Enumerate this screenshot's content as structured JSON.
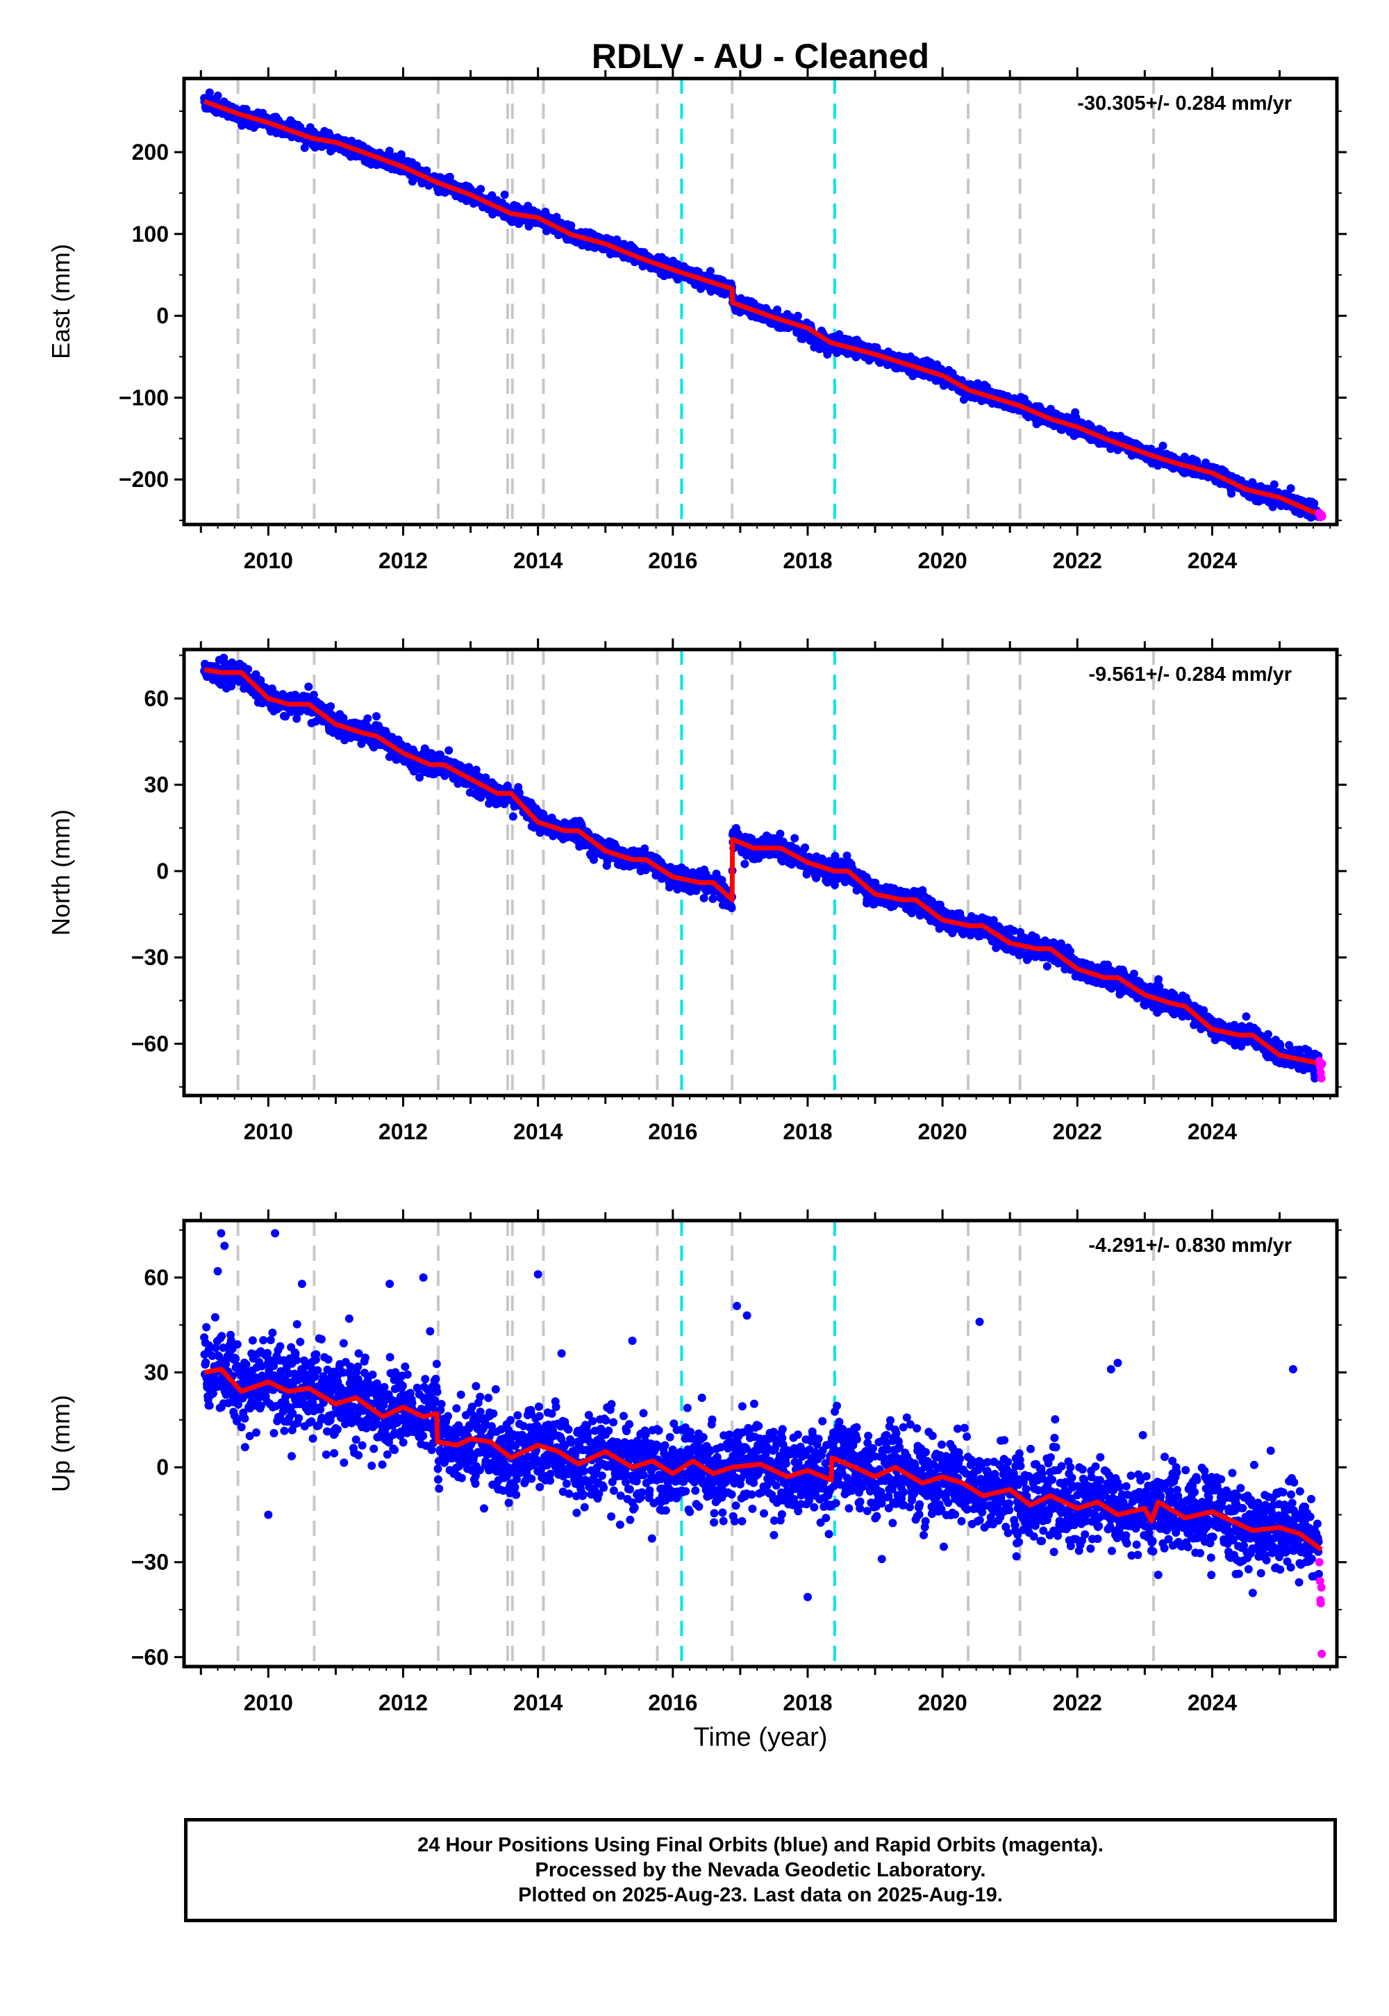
{
  "title": "RDLV  - AU - Cleaned",
  "xlabel": "Time (year)",
  "footer": {
    "line1": "24 Hour Positions Using Final Orbits (blue) and Rapid Orbits (magenta).",
    "line2": "Processed by the Nevada Geodetic Laboratory.",
    "line3": "Plotted on 2025-Aug-23. Last data on 2025-Aug-19."
  },
  "colors": {
    "final_orbits": "#0000ff",
    "rapid_orbits": "#ff00ff",
    "model": "#ff0000",
    "equipment_change_lines": "#c8c8c8",
    "earthquake_lines": "#00e5ee"
  },
  "chart_data": [
    {
      "type": "scatter",
      "component": "East",
      "ylabel": "East (mm)",
      "rate_label": "-30.305+/- 0.284 mm/yr",
      "xlim": [
        2008.75,
        2025.85
      ],
      "ylim": [
        -255,
        290
      ],
      "yticks": [
        -200,
        -100,
        0,
        100,
        200
      ],
      "xticks": [
        2010,
        2012,
        2014,
        2016,
        2018,
        2020,
        2022,
        2024
      ],
      "grid": false,
      "model_knots": [
        [
          2009.05,
          262
        ],
        [
          2009.55,
          247
        ],
        [
          2010.0,
          236
        ],
        [
          2010.65,
          217
        ],
        [
          2011.0,
          212
        ],
        [
          2011.4,
          200
        ],
        [
          2012.0,
          182
        ],
        [
          2012.5,
          163
        ],
        [
          2013.0,
          148
        ],
        [
          2013.6,
          125
        ],
        [
          2014.0,
          120
        ],
        [
          2014.5,
          99
        ],
        [
          2015.0,
          88
        ],
        [
          2015.5,
          71
        ],
        [
          2016.12,
          53
        ],
        [
          2016.88,
          33
        ],
        [
          2016.885,
          16
        ],
        [
          2017.5,
          -2
        ],
        [
          2018.0,
          -15
        ],
        [
          2018.35,
          -33
        ],
        [
          2019.0,
          -47
        ],
        [
          2019.5,
          -60
        ],
        [
          2020.0,
          -73
        ],
        [
          2020.4,
          -91
        ],
        [
          2021.15,
          -110
        ],
        [
          2021.6,
          -126
        ],
        [
          2022.0,
          -136
        ],
        [
          2022.5,
          -153
        ],
        [
          2023.15,
          -172
        ],
        [
          2023.5,
          -181
        ],
        [
          2024.0,
          -192
        ],
        [
          2024.5,
          -212
        ],
        [
          2025.0,
          -222
        ],
        [
          2025.62,
          -244
        ]
      ],
      "scatter_sigma": 4.5,
      "rapid_points": [
        [
          2025.59,
          -241
        ],
        [
          2025.6,
          -244
        ],
        [
          2025.61,
          -246
        ],
        [
          2025.62,
          -243
        ],
        [
          2025.63,
          -245
        ]
      ]
    },
    {
      "type": "scatter",
      "component": "North",
      "ylabel": "North (mm)",
      "rate_label": "-9.561+/- 0.284 mm/yr",
      "xlim": [
        2008.75,
        2025.85
      ],
      "ylim": [
        -78,
        77
      ],
      "yticks": [
        -60,
        -30,
        0,
        30,
        60
      ],
      "xticks": [
        2010,
        2012,
        2014,
        2016,
        2018,
        2020,
        2022,
        2024
      ],
      "grid": false,
      "model_knots": [
        [
          2009.05,
          70
        ],
        [
          2009.3,
          69
        ],
        [
          2009.6,
          69
        ],
        [
          2010.0,
          60
        ],
        [
          2010.3,
          58
        ],
        [
          2010.6,
          58
        ],
        [
          2011.0,
          51
        ],
        [
          2011.4,
          48
        ],
        [
          2011.6,
          47
        ],
        [
          2012.0,
          41
        ],
        [
          2012.4,
          37
        ],
        [
          2012.6,
          37
        ],
        [
          2013.0,
          32
        ],
        [
          2013.4,
          27
        ],
        [
          2013.6,
          27
        ],
        [
          2014.0,
          17
        ],
        [
          2014.4,
          14
        ],
        [
          2014.6,
          14
        ],
        [
          2015.0,
          7
        ],
        [
          2015.4,
          4
        ],
        [
          2015.6,
          4
        ],
        [
          2016.0,
          -2
        ],
        [
          2016.4,
          -4
        ],
        [
          2016.6,
          -4
        ],
        [
          2016.88,
          -10
        ],
        [
          2016.885,
          11
        ],
        [
          2017.2,
          8
        ],
        [
          2017.6,
          8
        ],
        [
          2018.0,
          3
        ],
        [
          2018.4,
          0
        ],
        [
          2018.6,
          0
        ],
        [
          2019.0,
          -8
        ],
        [
          2019.4,
          -10
        ],
        [
          2019.6,
          -10
        ],
        [
          2020.0,
          -17
        ],
        [
          2020.4,
          -19
        ],
        [
          2020.6,
          -19
        ],
        [
          2021.0,
          -25
        ],
        [
          2021.4,
          -27
        ],
        [
          2021.6,
          -27
        ],
        [
          2022.0,
          -34
        ],
        [
          2022.4,
          -37
        ],
        [
          2022.6,
          -37
        ],
        [
          2023.0,
          -43
        ],
        [
          2023.4,
          -46
        ],
        [
          2023.6,
          -47
        ],
        [
          2024.0,
          -55
        ],
        [
          2024.4,
          -57
        ],
        [
          2024.6,
          -57
        ],
        [
          2025.0,
          -64
        ],
        [
          2025.62,
          -67
        ]
      ],
      "scatter_sigma": 1.8,
      "rapid_points": [
        [
          2025.59,
          -66
        ],
        [
          2025.6,
          -68
        ],
        [
          2025.61,
          -70
        ],
        [
          2025.62,
          -72
        ],
        [
          2025.63,
          -67
        ]
      ]
    },
    {
      "type": "scatter",
      "component": "Up",
      "ylabel": "Up (mm)",
      "rate_label": "-4.291+/- 0.830 mm/yr",
      "xlim": [
        2008.75,
        2025.85
      ],
      "ylim": [
        -63,
        78
      ],
      "yticks": [
        -60,
        -30,
        0,
        30,
        60
      ],
      "xticks": [
        2010,
        2012,
        2014,
        2016,
        2018,
        2020,
        2022,
        2024
      ],
      "grid": false,
      "model_knots": [
        [
          2009.05,
          30
        ],
        [
          2009.3,
          31
        ],
        [
          2009.6,
          24
        ],
        [
          2010.0,
          27
        ],
        [
          2010.3,
          24
        ],
        [
          2010.6,
          25
        ],
        [
          2011.0,
          20
        ],
        [
          2011.3,
          22
        ],
        [
          2011.7,
          16
        ],
        [
          2012.0,
          19
        ],
        [
          2012.3,
          16
        ],
        [
          2012.5,
          17
        ],
        [
          2012.51,
          8
        ],
        [
          2012.8,
          7
        ],
        [
          2013.0,
          9
        ],
        [
          2013.3,
          8
        ],
        [
          2013.6,
          3
        ],
        [
          2014.0,
          7
        ],
        [
          2014.3,
          5
        ],
        [
          2014.6,
          1
        ],
        [
          2015.0,
          5
        ],
        [
          2015.4,
          0
        ],
        [
          2015.7,
          2
        ],
        [
          2016.0,
          -2
        ],
        [
          2016.3,
          2
        ],
        [
          2016.6,
          -2
        ],
        [
          2016.88,
          0
        ],
        [
          2017.3,
          1
        ],
        [
          2017.7,
          -3
        ],
        [
          2018.0,
          -1
        ],
        [
          2018.35,
          -4
        ],
        [
          2018.36,
          3
        ],
        [
          2018.7,
          0
        ],
        [
          2019.0,
          -3
        ],
        [
          2019.3,
          0
        ],
        [
          2019.7,
          -5
        ],
        [
          2020.0,
          -3
        ],
        [
          2020.3,
          -5
        ],
        [
          2020.6,
          -9
        ],
        [
          2021.0,
          -7
        ],
        [
          2021.3,
          -12
        ],
        [
          2021.6,
          -9
        ],
        [
          2022.0,
          -13
        ],
        [
          2022.3,
          -11
        ],
        [
          2022.6,
          -15
        ],
        [
          2023.0,
          -13
        ],
        [
          2023.1,
          -17
        ],
        [
          2023.2,
          -11
        ],
        [
          2023.6,
          -16
        ],
        [
          2024.0,
          -14
        ],
        [
          2024.3,
          -17
        ],
        [
          2024.6,
          -20
        ],
        [
          2025.0,
          -19
        ],
        [
          2025.3,
          -21
        ],
        [
          2025.62,
          -26
        ]
      ],
      "scatter_sigma": 6.5,
      "outliers": [
        [
          2009.3,
          74
        ],
        [
          2009.35,
          70
        ],
        [
          2010.1,
          74
        ],
        [
          2009.25,
          62
        ],
        [
          2010.5,
          58
        ],
        [
          2011.8,
          58
        ],
        [
          2012.3,
          60
        ],
        [
          2014.0,
          61
        ],
        [
          2014.35,
          36
        ],
        [
          2015.4,
          40
        ],
        [
          2016.95,
          51
        ],
        [
          2017.1,
          48
        ],
        [
          2018.0,
          -41
        ],
        [
          2020.55,
          46
        ],
        [
          2022.6,
          33
        ],
        [
          2022.5,
          31
        ],
        [
          2025.2,
          31
        ],
        [
          2010.0,
          -15
        ],
        [
          2013.2,
          -13
        ],
        [
          2013.8,
          -5
        ],
        [
          2019.1,
          -29
        ],
        [
          2023.2,
          -34
        ],
        [
          2012.4,
          43
        ],
        [
          2011.2,
          47
        ]
      ],
      "rapid_points": [
        [
          2025.59,
          -30
        ],
        [
          2025.6,
          -36
        ],
        [
          2025.605,
          -42
        ],
        [
          2025.61,
          -43
        ],
        [
          2025.62,
          -38
        ],
        [
          2025.625,
          -59
        ]
      ]
    }
  ],
  "vertical_lines": {
    "equipment_change": [
      2009.55,
      2010.68,
      2012.52,
      2013.55,
      2013.62,
      2014.08,
      2015.77,
      2016.88,
      2020.38,
      2021.15,
      2023.13
    ],
    "earthquake": [
      2016.13,
      2018.4
    ]
  }
}
